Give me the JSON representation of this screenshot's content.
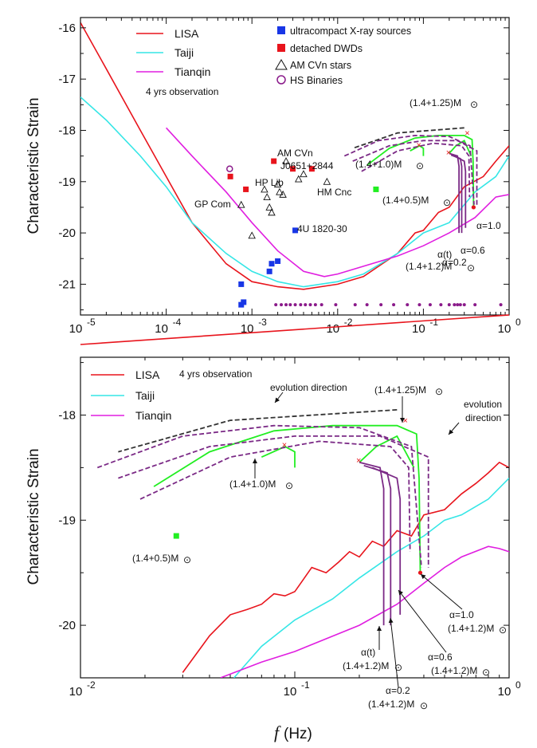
{
  "figure": {
    "xlabel_symbol": "f",
    "xlabel_unit": "(Hz)"
  },
  "colors": {
    "lisa": "#e8141c",
    "taiji": "#35e6e6",
    "tianqin": "#e01ee0",
    "ucxb": "#1836e6",
    "dwd": "#e8141c",
    "hs": "#8a1a8a",
    "green": "#22ee22",
    "purple": "#7b2a86",
    "dotted": "#333333"
  },
  "chart_data": [
    {
      "type": "line",
      "panel": "top",
      "xscale": "log",
      "xlim": [
        1e-05,
        1
      ],
      "ylim": [
        -21.6,
        -15.8
      ],
      "ylabel": "Characteristic Strain",
      "yticks": [
        "-16",
        "-17",
        "-18",
        "-19",
        "-20",
        "-21"
      ],
      "xticks": [
        "10",
        "10",
        "10",
        "10",
        "10",
        "10"
      ],
      "xtick_exps": [
        "-5",
        "-4",
        "-3",
        "-2",
        "-1",
        "0"
      ],
      "legend_left": [
        "LISA",
        "Taiji",
        "Tianqin"
      ],
      "legend_right": [
        "ultracompact X-ray sources",
        "detached DWDs",
        "AM CVn stars",
        "HS Binaries"
      ],
      "note": "4 yrs observation",
      "series": [
        {
          "name": "LISA",
          "points": [
            [
              1e-05,
              -15.9
            ],
            [
              2e-05,
              -16.8
            ],
            [
              5e-05,
              -18.0
            ],
            [
              0.0001,
              -18.9
            ],
            [
              0.0002,
              -19.8
            ],
            [
              0.0005,
              -20.6
            ],
            [
              0.001,
              -20.95
            ],
            [
              0.002,
              -21.05
            ],
            [
              0.004,
              -21.1
            ],
            [
              0.01,
              -21.0
            ],
            [
              0.02,
              -20.85
            ],
            [
              0.05,
              -20.4
            ],
            [
              0.08,
              -20.0
            ],
            [
              0.1,
              -19.95
            ],
            [
              0.15,
              -19.6
            ],
            [
              0.2,
              -19.5
            ],
            [
              0.3,
              -19.1
            ],
            [
              0.5,
              -18.9
            ],
            [
              0.7,
              -18.6
            ],
            [
              1,
              -18.3
            ]
          ]
        },
        {
          "name": "Taiji",
          "points": [
            [
              1e-05,
              -17.35
            ],
            [
              2e-05,
              -17.8
            ],
            [
              5e-05,
              -18.5
            ],
            [
              0.0001,
              -19.1
            ],
            [
              0.0002,
              -19.8
            ],
            [
              0.0005,
              -20.4
            ],
            [
              0.001,
              -20.75
            ],
            [
              0.002,
              -20.95
            ],
            [
              0.004,
              -21.05
            ],
            [
              0.01,
              -20.95
            ],
            [
              0.02,
              -20.8
            ],
            [
              0.05,
              -20.4
            ],
            [
              0.1,
              -20.0
            ],
            [
              0.2,
              -19.8
            ],
            [
              0.4,
              -19.2
            ],
            [
              0.7,
              -18.9
            ],
            [
              1,
              -18.5
            ]
          ]
        },
        {
          "name": "Tianqin",
          "points": [
            [
              0.0001,
              -17.95
            ],
            [
              0.0002,
              -18.5
            ],
            [
              0.0005,
              -19.2
            ],
            [
              0.001,
              -19.8
            ],
            [
              0.002,
              -20.35
            ],
            [
              0.004,
              -20.75
            ],
            [
              0.007,
              -20.85
            ],
            [
              0.01,
              -20.8
            ],
            [
              0.02,
              -20.65
            ],
            [
              0.05,
              -20.45
            ],
            [
              0.1,
              -20.25
            ],
            [
              0.2,
              -20.0
            ],
            [
              0.4,
              -19.7
            ],
            [
              0.7,
              -19.3
            ],
            [
              1,
              -19.25
            ]
          ]
        }
      ],
      "ucxb_points": [
        [
          0.00075,
          -21.0
        ],
        [
          0.00075,
          -21.4
        ],
        [
          0.0008,
          -21.35
        ],
        [
          0.0016,
          -20.75
        ],
        [
          0.0017,
          -20.6
        ],
        [
          0.002,
          -20.55
        ],
        [
          0.0032,
          -19.95
        ]
      ],
      "dwd_points": [
        [
          0.00056,
          -18.9
        ],
        [
          0.00085,
          -19.15
        ],
        [
          0.0018,
          -18.6
        ],
        [
          0.003,
          -18.75
        ],
        [
          0.005,
          -18.75
        ],
        [
          0.028,
          -19.15
        ]
      ],
      "amcvn_points": [
        [
          0.00075,
          -19.45
        ],
        [
          0.001,
          -20.05
        ],
        [
          0.0014,
          -19.15
        ],
        [
          0.0015,
          -19.3
        ],
        [
          0.0016,
          -19.5
        ],
        [
          0.0017,
          -19.6
        ],
        [
          0.002,
          -19.05
        ],
        [
          0.0021,
          -19.2
        ],
        [
          0.0023,
          -19.25
        ],
        [
          0.0025,
          -18.6
        ],
        [
          0.0035,
          -18.95
        ],
        [
          0.004,
          -18.85
        ],
        [
          0.0075,
          -19.0
        ]
      ],
      "hs_points": [
        [
          0.00055,
          -18.75
        ]
      ],
      "dotrow_y": -21.4,
      "dotrow_x": [
        0.0019,
        0.0022,
        0.0025,
        0.0028,
        0.0032,
        0.0037,
        0.0042,
        0.0048,
        0.0055,
        0.0065,
        0.0095,
        0.016,
        0.022,
        0.032,
        0.045,
        0.065,
        0.09,
        0.12,
        0.16,
        0.2,
        0.23,
        0.25,
        0.27,
        0.3,
        0.4,
        0.8
      ],
      "labels": {
        "amcvn": "AM CVn",
        "j0651": "J0651+2844",
        "hplib": "HP Lib",
        "gpcom": "GP Com",
        "hmcnc": "HM Cnc",
        "u4": "4U 1820-30",
        "m125": "(1.4+1.25)M",
        "m10": "(1.4+1.0)M",
        "m05": "(1.4+0.5)M",
        "alpha_t": "α(t)",
        "m12": "(1.4+1.2)M",
        "a02": "α=0.2",
        "a06": "α=0.6",
        "a10": "α=1.0"
      }
    },
    {
      "type": "line",
      "panel": "bottom",
      "xscale": "log",
      "xlim": [
        0.01,
        1
      ],
      "ylim": [
        -20.5,
        -17.45
      ],
      "ylabel": "Characteristic Strain",
      "yticks": [
        "-18",
        "-19",
        "-20"
      ],
      "xticks": [
        "10",
        "10",
        "10"
      ],
      "xtick_exps": [
        "-2",
        "-1",
        "0"
      ],
      "legend": [
        "LISA",
        "Taiji",
        "Tianqin"
      ],
      "note": "4 yrs observation",
      "series": [
        {
          "name": "LISA",
          "points": [
            [
              0.03,
              -20.45
            ],
            [
              0.04,
              -20.1
            ],
            [
              0.05,
              -19.9
            ],
            [
              0.06,
              -19.85
            ],
            [
              0.07,
              -19.8
            ],
            [
              0.08,
              -19.7
            ],
            [
              0.09,
              -19.72
            ],
            [
              0.1,
              -19.68
            ],
            [
              0.12,
              -19.45
            ],
            [
              0.14,
              -19.5
            ],
            [
              0.16,
              -19.4
            ],
            [
              0.18,
              -19.3
            ],
            [
              0.2,
              -19.35
            ],
            [
              0.23,
              -19.2
            ],
            [
              0.26,
              -19.25
            ],
            [
              0.3,
              -19.1
            ],
            [
              0.35,
              -19.15
            ],
            [
              0.4,
              -18.95
            ],
            [
              0.5,
              -18.9
            ],
            [
              0.6,
              -18.75
            ],
            [
              0.7,
              -18.65
            ],
            [
              0.8,
              -18.55
            ],
            [
              0.9,
              -18.45
            ],
            [
              1,
              -18.5
            ]
          ]
        },
        {
          "name": "Taiji",
          "points": [
            [
              0.052,
              -20.5
            ],
            [
              0.07,
              -20.2
            ],
            [
              0.1,
              -19.95
            ],
            [
              0.15,
              -19.75
            ],
            [
              0.2,
              -19.55
            ],
            [
              0.3,
              -19.3
            ],
            [
              0.4,
              -19.15
            ],
            [
              0.5,
              -19.0
            ],
            [
              0.6,
              -18.95
            ],
            [
              0.8,
              -18.8
            ],
            [
              1,
              -18.6
            ]
          ]
        },
        {
          "name": "Tianqin",
          "points": [
            [
              0.045,
              -20.5
            ],
            [
              0.07,
              -20.35
            ],
            [
              0.1,
              -20.25
            ],
            [
              0.2,
              -20.0
            ],
            [
              0.3,
              -19.8
            ],
            [
              0.4,
              -19.6
            ],
            [
              0.5,
              -19.45
            ],
            [
              0.6,
              -19.35
            ],
            [
              0.8,
              -19.25
            ],
            [
              0.9,
              -19.27
            ],
            [
              1,
              -19.3
            ]
          ]
        }
      ],
      "labels": {
        "evo1": "evolution direction",
        "evo2a": "evolution",
        "evo2b": "direction",
        "m125": "(1.4+1.25)M",
        "m10": "(1.4+1.0)M",
        "m05": "(1.4+0.5)M",
        "alpha_t": "α(t)",
        "m12": "(1.4+1.2)M",
        "a02": "α=0.2",
        "a06": "α=0.6",
        "a10": "α=1.0"
      }
    }
  ]
}
